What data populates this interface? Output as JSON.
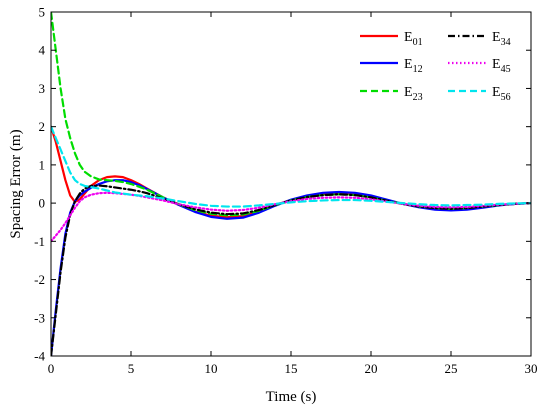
{
  "chart_data": {
    "type": "line",
    "title": "",
    "xlabel": "Time (s)",
    "ylabel": "Spacing Error (m)",
    "xlim": [
      0,
      30
    ],
    "ylim": [
      -4,
      5
    ],
    "xticks": [
      0,
      5,
      10,
      15,
      20,
      25,
      30
    ],
    "yticks": [
      -4,
      -3,
      -2,
      -1,
      0,
      1,
      2,
      3,
      4,
      5
    ],
    "grid": false,
    "legend_placement": "top-right",
    "series": [
      {
        "name": "E01",
        "legend_main": "E",
        "legend_sub": "01",
        "color": "#ff0000",
        "dash": "solid",
        "x": [
          0,
          0.3,
          0.6,
          0.9,
          1.2,
          1.5,
          1.8,
          2.1,
          2.5,
          3.0,
          3.5,
          4.0,
          4.5,
          5.0,
          5.5,
          6.0,
          7.0,
          8.0,
          9.0,
          10.0,
          11.0,
          12.0,
          13.0,
          14.0,
          15.0,
          16.0,
          17.0,
          18.0,
          19.0,
          20.0,
          21.0,
          22.0,
          23.0,
          24.0,
          25.0,
          26.0,
          27.0,
          28.0,
          29.0,
          30.0
        ],
        "values": [
          2.0,
          1.6,
          1.1,
          0.6,
          0.2,
          0.03,
          0.1,
          0.25,
          0.45,
          0.6,
          0.68,
          0.7,
          0.68,
          0.6,
          0.5,
          0.38,
          0.15,
          -0.05,
          -0.22,
          -0.33,
          -0.37,
          -0.34,
          -0.22,
          -0.05,
          0.08,
          0.18,
          0.24,
          0.26,
          0.24,
          0.17,
          0.07,
          -0.02,
          -0.1,
          -0.15,
          -0.17,
          -0.15,
          -0.1,
          -0.05,
          -0.02,
          0.0
        ]
      },
      {
        "name": "E12",
        "legend_main": "E",
        "legend_sub": "12",
        "color": "#0000ff",
        "dash": "solid",
        "x": [
          0,
          0.3,
          0.6,
          0.9,
          1.2,
          1.5,
          1.8,
          2.1,
          2.5,
          3.0,
          3.5,
          4.0,
          4.5,
          5.0,
          5.5,
          6.0,
          7.0,
          8.0,
          9.0,
          10.0,
          11.0,
          12.0,
          13.0,
          14.0,
          15.0,
          16.0,
          17.0,
          18.0,
          19.0,
          20.0,
          21.0,
          22.0,
          23.0,
          24.0,
          25.0,
          26.0,
          27.0,
          28.0,
          29.0,
          30.0
        ],
        "values": [
          -4.0,
          -2.8,
          -1.7,
          -0.8,
          -0.25,
          0.05,
          0.2,
          0.3,
          0.4,
          0.5,
          0.57,
          0.6,
          0.6,
          0.55,
          0.47,
          0.37,
          0.15,
          -0.05,
          -0.23,
          -0.36,
          -0.41,
          -0.38,
          -0.25,
          -0.07,
          0.09,
          0.2,
          0.27,
          0.29,
          0.27,
          0.2,
          0.09,
          -0.02,
          -0.11,
          -0.17,
          -0.19,
          -0.17,
          -0.12,
          -0.06,
          -0.02,
          0.0
        ]
      },
      {
        "name": "E23",
        "legend_main": "E",
        "legend_sub": "23",
        "color": "#00dd00",
        "dash": "dashed",
        "x": [
          0,
          0.3,
          0.6,
          0.9,
          1.2,
          1.5,
          1.8,
          2.1,
          2.5,
          3.0,
          3.5,
          4.0,
          4.5,
          5.0,
          5.5,
          6.0,
          7.0,
          8.0,
          9.0,
          10.0,
          11.0,
          12.0,
          13.0,
          14.0,
          15.0,
          16.0,
          17.0,
          18.0,
          19.0,
          20.0,
          21.0,
          22.0,
          23.0,
          24.0,
          25.0,
          26.0,
          27.0,
          28.0,
          29.0,
          30.0
        ],
        "values": [
          5.0,
          4.0,
          3.0,
          2.2,
          1.7,
          1.3,
          1.0,
          0.82,
          0.7,
          0.62,
          0.6,
          0.58,
          0.55,
          0.5,
          0.43,
          0.35,
          0.15,
          -0.03,
          -0.18,
          -0.28,
          -0.32,
          -0.3,
          -0.2,
          -0.05,
          0.07,
          0.16,
          0.21,
          0.23,
          0.21,
          0.15,
          0.06,
          -0.02,
          -0.09,
          -0.13,
          -0.15,
          -0.13,
          -0.09,
          -0.05,
          -0.02,
          0.0
        ]
      },
      {
        "name": "E34",
        "legend_main": "E",
        "legend_sub": "34",
        "color": "#000000",
        "dash": "dashdot",
        "x": [
          0,
          0.3,
          0.6,
          0.9,
          1.2,
          1.5,
          1.8,
          2.1,
          2.5,
          3.0,
          3.5,
          4.0,
          4.5,
          5.0,
          5.5,
          6.0,
          7.0,
          8.0,
          9.0,
          10.0,
          11.0,
          12.0,
          13.0,
          14.0,
          15.0,
          16.0,
          17.0,
          18.0,
          19.0,
          20.0,
          21.0,
          22.0,
          23.0,
          24.0,
          25.0,
          26.0,
          27.0,
          28.0,
          29.0,
          30.0
        ],
        "values": [
          -4.0,
          -2.9,
          -1.8,
          -0.9,
          -0.3,
          0.05,
          0.25,
          0.38,
          0.45,
          0.46,
          0.44,
          0.41,
          0.38,
          0.35,
          0.31,
          0.26,
          0.12,
          -0.03,
          -0.16,
          -0.25,
          -0.29,
          -0.27,
          -0.18,
          -0.05,
          0.07,
          0.16,
          0.21,
          0.23,
          0.21,
          0.15,
          0.06,
          -0.02,
          -0.09,
          -0.13,
          -0.15,
          -0.13,
          -0.09,
          -0.05,
          -0.02,
          0.0
        ]
      },
      {
        "name": "E45",
        "legend_main": "E",
        "legend_sub": "45",
        "color": "#ee00ee",
        "dash": "dotted",
        "x": [
          0,
          0.3,
          0.6,
          0.9,
          1.2,
          1.5,
          1.8,
          2.1,
          2.5,
          3.0,
          3.5,
          4.0,
          4.5,
          5.0,
          5.5,
          6.0,
          7.0,
          8.0,
          9.0,
          10.0,
          11.0,
          12.0,
          13.0,
          14.0,
          15.0,
          16.0,
          17.0,
          18.0,
          19.0,
          20.0,
          21.0,
          22.0,
          23.0,
          24.0,
          25.0,
          26.0,
          27.0,
          28.0,
          29.0,
          30.0
        ],
        "values": [
          -1.0,
          -0.85,
          -0.7,
          -0.52,
          -0.32,
          -0.12,
          0.05,
          0.15,
          0.22,
          0.26,
          0.27,
          0.26,
          0.24,
          0.22,
          0.19,
          0.15,
          0.07,
          -0.03,
          -0.11,
          -0.17,
          -0.2,
          -0.18,
          -0.12,
          -0.03,
          0.05,
          0.11,
          0.14,
          0.15,
          0.14,
          0.1,
          0.04,
          -0.02,
          -0.07,
          -0.1,
          -0.11,
          -0.1,
          -0.07,
          -0.04,
          -0.02,
          0.0
        ]
      },
      {
        "name": "E56",
        "legend_main": "E",
        "legend_sub": "56",
        "color": "#00e5ee",
        "dash": "dashed",
        "x": [
          0,
          0.3,
          0.6,
          0.9,
          1.2,
          1.5,
          1.8,
          2.1,
          2.5,
          3.0,
          3.5,
          4.0,
          4.5,
          5.0,
          5.5,
          6.0,
          7.0,
          8.0,
          9.0,
          10.0,
          11.0,
          12.0,
          13.0,
          14.0,
          15.0,
          16.0,
          17.0,
          18.0,
          19.0,
          20.0,
          21.0,
          22.0,
          23.0,
          24.0,
          25.0,
          26.0,
          27.0,
          28.0,
          29.0,
          30.0
        ],
        "values": [
          2.0,
          1.7,
          1.4,
          1.1,
          0.8,
          0.6,
          0.5,
          0.45,
          0.42,
          0.38,
          0.33,
          0.28,
          0.25,
          0.22,
          0.2,
          0.18,
          0.12,
          0.05,
          -0.02,
          -0.07,
          -0.09,
          -0.09,
          -0.06,
          -0.02,
          0.02,
          0.05,
          0.07,
          0.08,
          0.08,
          0.06,
          0.03,
          0.0,
          -0.03,
          -0.05,
          -0.06,
          -0.05,
          -0.04,
          -0.02,
          -0.01,
          0.0
        ]
      }
    ]
  }
}
